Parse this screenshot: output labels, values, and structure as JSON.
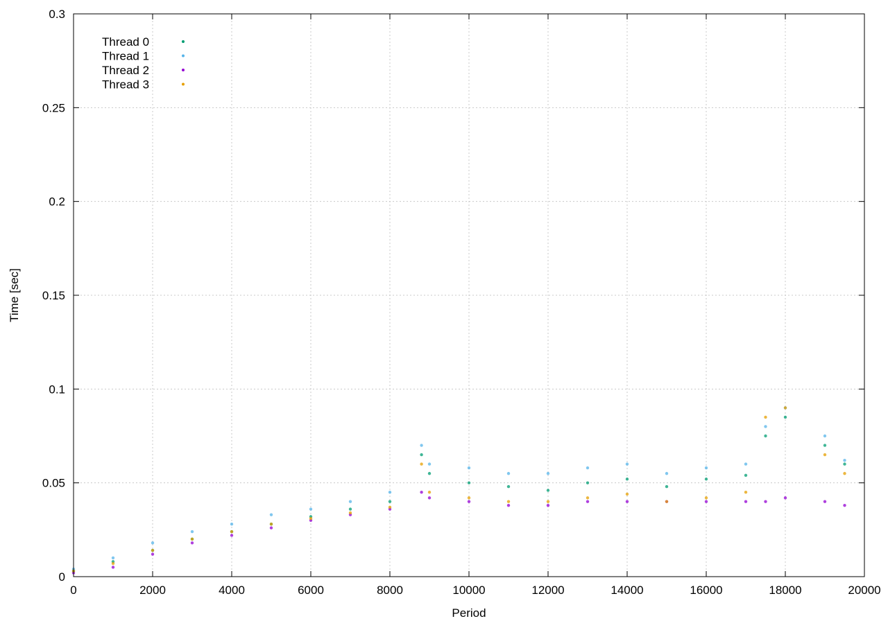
{
  "chart_data": {
    "type": "scatter",
    "title": "",
    "xlabel": "Period",
    "ylabel": "Time [sec]",
    "xlim": [
      0,
      20000
    ],
    "ylim": [
      0,
      0.3
    ],
    "xticks": [
      0,
      2000,
      4000,
      6000,
      8000,
      10000,
      12000,
      14000,
      16000,
      18000,
      20000
    ],
    "yticks": [
      0,
      0.05,
      0.1,
      0.15,
      0.2,
      0.25,
      0.3
    ],
    "xtick_labels": [
      "0",
      "2000",
      "4000",
      "6000",
      "8000",
      "10000",
      "12000",
      "14000",
      "16000",
      "18000",
      "20000"
    ],
    "ytick_labels": [
      "0",
      "0.05",
      "0.1",
      "0.15",
      "0.2",
      "0.25",
      "0.3"
    ],
    "grid": true,
    "legend_position": "top-left",
    "series": [
      {
        "name": "Thread 0",
        "color": "#009e73",
        "x": [
          0,
          1000,
          2000,
          3000,
          4000,
          5000,
          6000,
          7000,
          8000,
          8800,
          9000,
          10000,
          11000,
          12000,
          13000,
          14000,
          15000,
          16000,
          17000,
          17500,
          18000,
          19000,
          19500
        ],
        "y": [
          0.003,
          0.008,
          0.014,
          0.02,
          0.024,
          0.028,
          0.032,
          0.036,
          0.04,
          0.065,
          0.055,
          0.05,
          0.048,
          0.046,
          0.05,
          0.052,
          0.048,
          0.052,
          0.054,
          0.075,
          0.085,
          0.07,
          0.06
        ]
      },
      {
        "name": "Thread 1",
        "color": "#56b4e9",
        "x": [
          0,
          1000,
          2000,
          3000,
          4000,
          5000,
          6000,
          7000,
          8000,
          8800,
          9000,
          10000,
          11000,
          12000,
          13000,
          14000,
          15000,
          16000,
          17000,
          17500,
          18000,
          19000,
          19500
        ],
        "y": [
          0.004,
          0.01,
          0.018,
          0.024,
          0.028,
          0.033,
          0.036,
          0.04,
          0.045,
          0.07,
          0.06,
          0.058,
          0.055,
          0.055,
          0.058,
          0.06,
          0.055,
          0.058,
          0.06,
          0.08,
          0.09,
          0.075,
          0.062
        ]
      },
      {
        "name": "Thread 2",
        "color": "#9400d3",
        "x": [
          0,
          1000,
          2000,
          3000,
          4000,
          5000,
          6000,
          7000,
          8000,
          8800,
          9000,
          10000,
          11000,
          12000,
          13000,
          14000,
          15000,
          16000,
          17000,
          17500,
          18000,
          19000,
          19500
        ],
        "y": [
          0.002,
          0.005,
          0.012,
          0.018,
          0.022,
          0.026,
          0.03,
          0.033,
          0.036,
          0.045,
          0.042,
          0.04,
          0.038,
          0.038,
          0.04,
          0.04,
          0.04,
          0.04,
          0.04,
          0.04,
          0.042,
          0.04,
          0.038
        ]
      },
      {
        "name": "Thread 3",
        "color": "#e69f00",
        "x": [
          0,
          1000,
          2000,
          3000,
          4000,
          5000,
          6000,
          7000,
          8000,
          8800,
          9000,
          10000,
          11000,
          12000,
          13000,
          14000,
          15000,
          16000,
          17000,
          17500,
          18000,
          19000,
          19500
        ],
        "y": [
          0.003,
          0.007,
          0.014,
          0.02,
          0.024,
          0.028,
          0.031,
          0.034,
          0.037,
          0.06,
          0.045,
          0.042,
          0.04,
          0.04,
          0.042,
          0.044,
          0.04,
          0.042,
          0.045,
          0.085,
          0.09,
          0.065,
          0.055
        ]
      }
    ]
  }
}
